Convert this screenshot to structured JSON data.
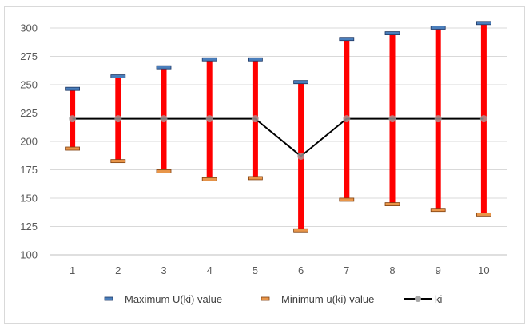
{
  "chart_data": {
    "type": "line",
    "title": "",
    "xlabel": "",
    "ylabel": "",
    "categories": [
      "1",
      "2",
      "3",
      "4",
      "5",
      "6",
      "7",
      "8",
      "9",
      "10"
    ],
    "ylim": [
      100,
      300
    ],
    "yticks": [
      100,
      125,
      150,
      175,
      200,
      225,
      250,
      275,
      300
    ],
    "grid": "horizontal",
    "legend_position": "bottom",
    "series": [
      {
        "name": "Maximum U(ki) value",
        "values": [
          246,
          257,
          265,
          272,
          272,
          252,
          290,
          295,
          300,
          304
        ]
      },
      {
        "name": "Minimum u(ki) value",
        "values": [
          194,
          183,
          174,
          167,
          168,
          122,
          149,
          145,
          140,
          136
        ]
      },
      {
        "name": "ki",
        "values": [
          220,
          220,
          220,
          220,
          220,
          187,
          220,
          220,
          220,
          220
        ]
      }
    ],
    "colors": {
      "max_marker": "#4a7ebb",
      "min_marker": "#e8964a",
      "range_bar": "#ff0000",
      "ki_line": "#000000",
      "ki_marker": "#a6a6a6",
      "grid": "#d9d9d9",
      "axis": "#bfbfbf"
    }
  }
}
